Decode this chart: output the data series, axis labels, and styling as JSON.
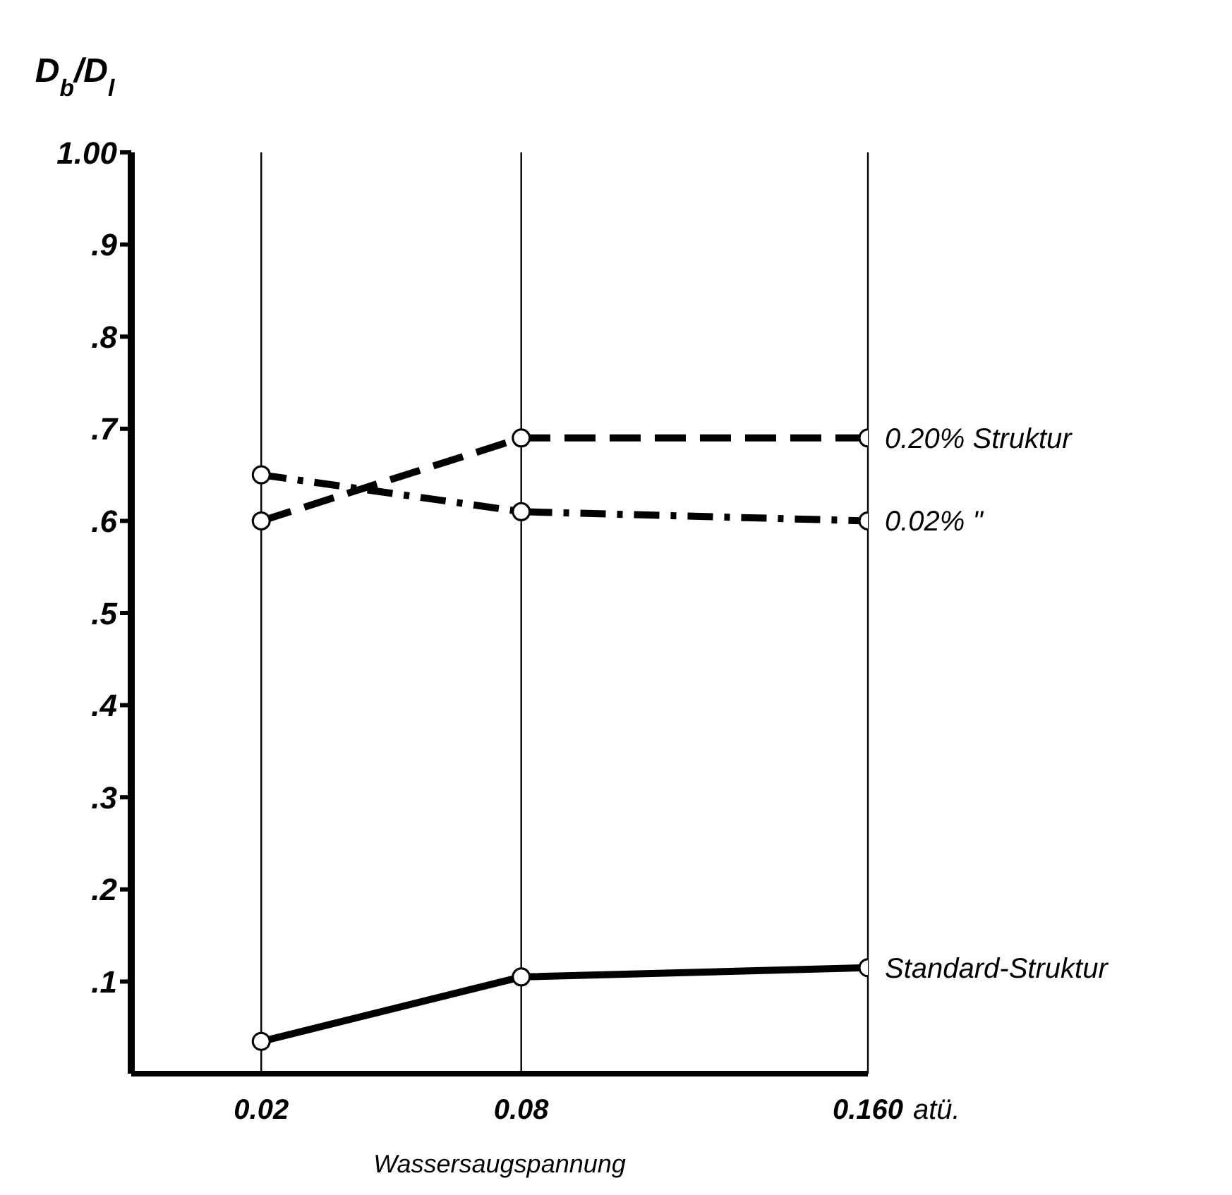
{
  "chart_data": {
    "type": "line",
    "x": [
      0.02,
      0.08,
      0.16
    ],
    "xlim": [
      -0.01,
      0.16
    ],
    "xticks": [
      0.02,
      0.08,
      {
        "value": 0.16,
        "label": "0.160"
      }
    ],
    "xlabel": "Wassersaugspannung",
    "ylabel": "D$_{b}$/D$_{l}$",
    "ylim": [
      0,
      1
    ],
    "yticks": [
      {
        "value": 0.1,
        "label": ".1"
      },
      {
        "value": 0.2,
        "label": ".2"
      },
      {
        "value": 0.3,
        "label": ".3"
      },
      {
        "value": 0.4,
        "label": ".4"
      },
      {
        "value": 0.5,
        "label": ".5"
      },
      {
        "value": 0.6,
        "label": ".6"
      },
      {
        "value": 0.7,
        "label": ".7"
      },
      {
        "value": 0.8,
        "label": ".8"
      },
      {
        "value": 0.9,
        "label": ".9"
      },
      {
        "value": 1,
        "label": "1.00"
      }
    ],
    "grid": "x",
    "marker": "circle",
    "annotations": [
      "atü."
    ],
    "series": [
      {
        "name": "0.20% Struktur",
        "color": "#000000",
        "line_style": "dashed",
        "values": [
          0.6,
          0.69,
          0.69
        ]
      },
      {
        "name": "0.02% \"",
        "color": "#000000",
        "line_style": "dashdot",
        "values": [
          0.65,
          0.61,
          0.6
        ]
      },
      {
        "name": "Standard-Struktur",
        "color": "#000000",
        "line_style": "solid",
        "values": [
          0.035,
          0.105,
          0.115
        ]
      }
    ]
  }
}
